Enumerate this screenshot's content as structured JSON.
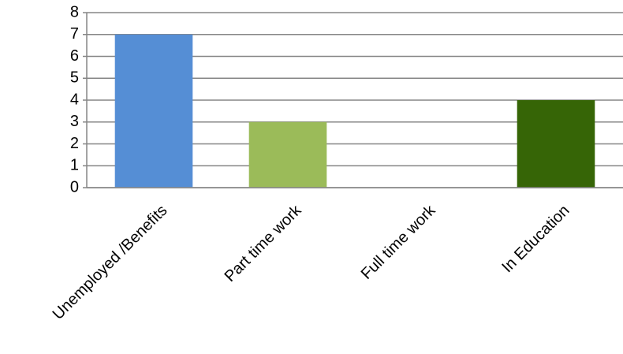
{
  "chart_data": {
    "type": "bar",
    "categories": [
      "Unemployed /Benefits",
      "Part time work",
      "Full time work",
      "In Education"
    ],
    "values": [
      7,
      3,
      0,
      4
    ],
    "colors": [
      "#558ED5",
      "#9BBB59",
      "#76923C",
      "#366506"
    ],
    "title": "",
    "xlabel": "",
    "ylabel": "",
    "ylim": [
      0,
      8
    ],
    "yticks": [
      "0",
      "1",
      "2",
      "3",
      "4",
      "5",
      "6",
      "7",
      "8"
    ],
    "grid": true,
    "gridline_color": "#868686",
    "legend": "none"
  }
}
